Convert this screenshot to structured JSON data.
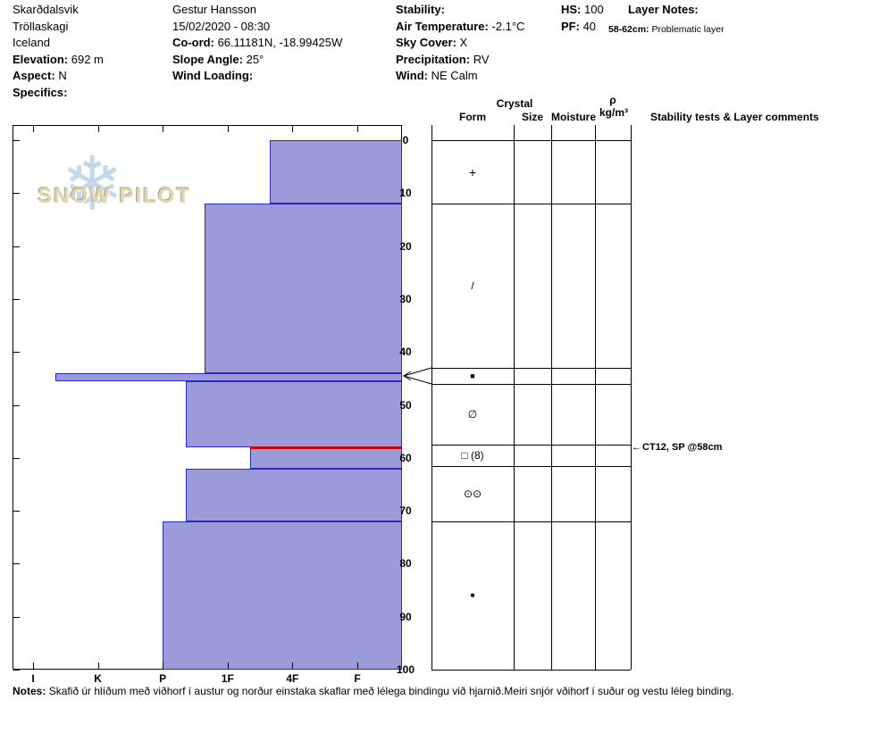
{
  "logo": {
    "text": "SNOW PILOT"
  },
  "header": {
    "location": {
      "name": "Skarðdalsvik",
      "region": "Tröllaskagi",
      "country": "Iceland",
      "elevation_label": "Elevation:",
      "elevation_value": "692 m",
      "aspect_label": "Aspect:",
      "aspect_value": "N",
      "specifics_label": "Specifics:",
      "specifics_value": ""
    },
    "observation": {
      "observer": "Gestur Hansson",
      "datetime": "15/02/2020 - 08:30",
      "coord_label": "Co-ord:",
      "coord_value": "66.11181N, -18.99425W",
      "slope_angle_label": "Slope Angle:",
      "slope_angle_value": "25°",
      "wind_loading_label": "Wind Loading:",
      "wind_loading_value": ""
    },
    "conditions": {
      "stability_label": "Stability:",
      "stability_value": "",
      "air_temperature_label": "Air Temperature:",
      "air_temperature_value": "-2.1°C",
      "sky_cover_label": "Sky Cover:",
      "sky_cover_value": "X",
      "precipitation_label": "Precipitation:",
      "precipitation_value": "RV",
      "wind_label": "Wind:",
      "wind_value": "NE Calm"
    },
    "snowpack": {
      "hs_label": "HS:",
      "hs_value": "100",
      "pf_label": "PF:",
      "pf_value": "40"
    },
    "layer_notes": {
      "label": "Layer Notes:",
      "items": [
        {
          "range": "58-62cm:",
          "text": "Problematic layer"
        }
      ]
    }
  },
  "panel": {
    "crystal": "Crystal",
    "form": "Form",
    "size": "Size",
    "moisture": "Moisture",
    "rho": "ρ",
    "rho_units": "kg/m³",
    "comments_header": "Stability tests & Layer comments"
  },
  "chart_data": {
    "type": "snow-profile-bar",
    "depth_unit": "cm",
    "depth_range": [
      0,
      100
    ],
    "depth_ticks": [
      0,
      10,
      20,
      30,
      40,
      50,
      60,
      70,
      80,
      90,
      100
    ],
    "hardness_categories": [
      "I",
      "K",
      "P",
      "1F",
      "4F",
      "F"
    ],
    "hardness_axis_note": "hand hardness, hardest (I) at left, bars grow leftward from F",
    "layers": [
      {
        "top_cm": 0,
        "bottom_cm": 12,
        "hardness": "4F+",
        "h": 2.35
      },
      {
        "top_cm": 12,
        "bottom_cm": 44,
        "hardness": "1F+",
        "h": 3.35
      },
      {
        "top_cm": 44,
        "bottom_cm": 45.5,
        "hardness": "K+",
        "h": 5.65
      },
      {
        "top_cm": 45.5,
        "bottom_cm": 58,
        "hardness": "P-",
        "h": 3.65
      },
      {
        "top_cm": 58,
        "bottom_cm": 62,
        "hardness": "1F-",
        "h": 2.65,
        "problematic": true
      },
      {
        "top_cm": 62,
        "bottom_cm": 72,
        "hardness": "P-",
        "h": 3.65
      },
      {
        "top_cm": 72,
        "bottom_cm": 100,
        "hardness": "P",
        "h": 4.0
      }
    ],
    "grain_form_rows": [
      {
        "from_cm": 0,
        "to_cm": 12,
        "glyph": "+"
      },
      {
        "from_cm": 12,
        "to_cm": 43,
        "glyph": "/"
      },
      {
        "from_cm": 43,
        "to_cm": 46,
        "glyph": "■",
        "actual_layer_cm": [
          44,
          45.5
        ]
      },
      {
        "from_cm": 46,
        "to_cm": 57.5,
        "glyph": "∅"
      },
      {
        "from_cm": 57.5,
        "to_cm": 61.5,
        "glyph": "□ (8)"
      },
      {
        "from_cm": 61.5,
        "to_cm": 72,
        "glyph": "⊙⊙"
      },
      {
        "from_cm": 72,
        "to_cm": 100,
        "glyph": "●"
      }
    ],
    "stability_tests": [
      {
        "depth_cm": 58,
        "label": "CT12, SP @58cm"
      }
    ],
    "colors": {
      "bar_fill": "#9b9bd9",
      "bar_border": "#2929b8",
      "problem_layer": "#c80000"
    }
  },
  "notes": {
    "label": "Notes:",
    "text": "Skafið úr hlíðum með viðhorf í austur og norður einstaka skaflar með lélega bindingu við hjarnið.Meiri snjór vðihorf í suður og vestu léleg binding."
  }
}
